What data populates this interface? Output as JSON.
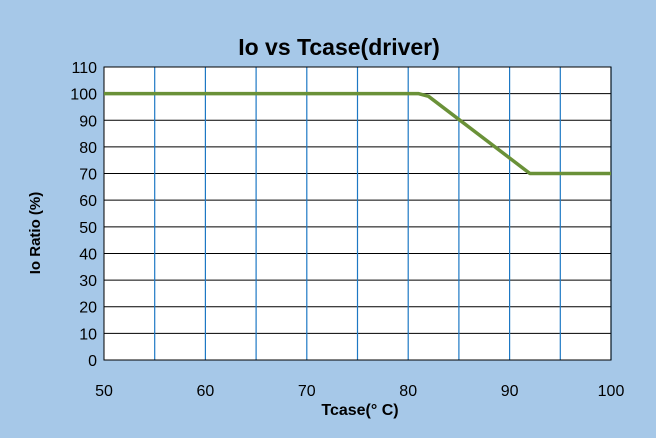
{
  "chart_data": {
    "type": "line",
    "title": "Io vs Tcase(driver)",
    "xlabel": "Tcase(° C)",
    "ylabel": "Io Ratio (%)",
    "xlim": [
      50,
      100
    ],
    "ylim": [
      0,
      110
    ],
    "xticks": [
      50,
      60,
      70,
      80,
      90,
      100
    ],
    "yticks": [
      0,
      10,
      20,
      30,
      40,
      50,
      60,
      70,
      80,
      90,
      100,
      110
    ],
    "x_gridlines": [
      55,
      60,
      65,
      70,
      75,
      80,
      85,
      90,
      95,
      100
    ],
    "grid": true,
    "legend": "none",
    "series": [
      {
        "x": [
          50,
          81,
          82,
          92,
          100
        ],
        "y": [
          100,
          100,
          99,
          70,
          70
        ]
      }
    ],
    "colors": {
      "background": "#a6c8e8",
      "plot_area": "#ffffff",
      "line": "#6a9138",
      "grid_horizontal": "#000000",
      "grid_vertical": "#1d78c4"
    }
  }
}
